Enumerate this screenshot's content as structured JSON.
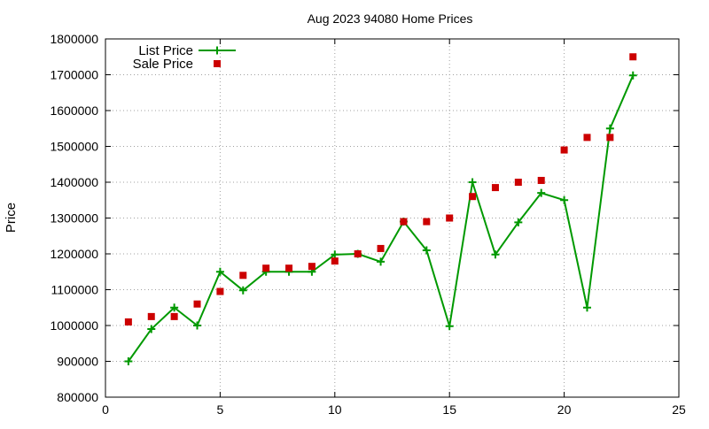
{
  "chart_data": {
    "type": "line",
    "title": "Aug 2023 94080 Home Prices",
    "xlabel": "",
    "ylabel": "Price",
    "xlim": [
      0,
      25
    ],
    "ylim": [
      800000,
      1800000
    ],
    "x_ticks": [
      0,
      5,
      10,
      15,
      20,
      25
    ],
    "x_tick_labels": [
      "0",
      "5",
      "10",
      "15",
      "20",
      "25"
    ],
    "y_ticks": [
      800000,
      900000,
      1000000,
      1100000,
      1200000,
      1300000,
      1400000,
      1500000,
      1600000,
      1700000,
      1800000
    ],
    "y_tick_labels": [
      "800000",
      "900000",
      "1000000",
      "1100000",
      "1200000",
      "1300000",
      "1400000",
      "1500000",
      "1600000",
      "1700000",
      "1800000"
    ],
    "grid": true,
    "legend_position": "top-left",
    "series": [
      {
        "name": "List Price",
        "style": "line-with-plus-markers",
        "color": "#009900",
        "x": [
          1,
          2,
          3,
          4,
          5,
          6,
          7,
          8,
          9,
          10,
          11,
          12,
          13,
          14,
          15,
          16,
          17,
          18,
          19,
          20,
          21,
          22,
          23
        ],
        "values": [
          900000,
          990000,
          1050000,
          1000000,
          1150000,
          1098000,
          1150000,
          1150000,
          1150000,
          1198000,
          1200000,
          1178000,
          1290000,
          1210000,
          998000,
          1400000,
          1198000,
          1288000,
          1370000,
          1350000,
          1050000,
          1550000,
          1698000
        ]
      },
      {
        "name": "Sale Price",
        "style": "square-markers",
        "color": "#cc0000",
        "x": [
          1,
          2,
          3,
          4,
          5,
          6,
          7,
          8,
          9,
          10,
          11,
          12,
          13,
          14,
          15,
          16,
          17,
          18,
          19,
          20,
          21,
          22,
          23
        ],
        "values": [
          1010000,
          1025000,
          1025000,
          1060000,
          1095000,
          1140000,
          1160000,
          1160000,
          1165000,
          1180000,
          1200000,
          1215000,
          1290000,
          1290000,
          1300000,
          1360000,
          1385000,
          1400000,
          1405000,
          1490000,
          1525000,
          1525000,
          1750000
        ]
      }
    ]
  }
}
